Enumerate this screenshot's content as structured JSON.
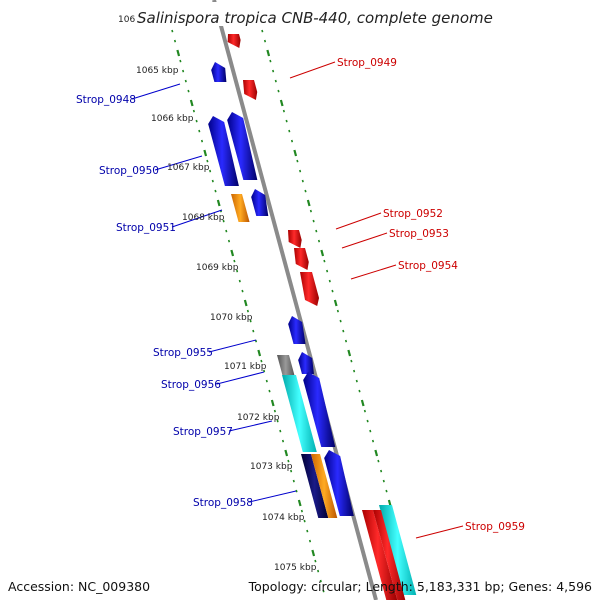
{
  "title": "Salinispora tropica CNB-440, complete genome",
  "accession": "Accession: NC_009380",
  "summary": "Topology: circular; Length: 5,183,331 bp; Genes: 4,596",
  "ticks": [
    {
      "label": "1065 kbp"
    },
    {
      "label": "1066 kbp"
    },
    {
      "label": "1067 kbp"
    },
    {
      "label": "1068 kbp"
    },
    {
      "label": "1069 kbp"
    },
    {
      "label": "1070 kbp"
    },
    {
      "label": "1071 kbp"
    },
    {
      "label": "1072 kbp"
    },
    {
      "label": "1073 kbp"
    },
    {
      "label": "1074 kbp"
    },
    {
      "label": "1075 kbp"
    }
  ],
  "top_tick_fragment": "106",
  "genes_left": [
    {
      "name": "Strop_0948",
      "color": "#0000cc"
    },
    {
      "name": "Strop_0950",
      "color": "#0000cc"
    },
    {
      "name": "Strop_0951",
      "color": "#0000cc"
    },
    {
      "name": "Strop_0955",
      "color": "#0000cc"
    },
    {
      "name": "Strop_0956",
      "color": "#0000cc"
    },
    {
      "name": "Strop_0957",
      "color": "#0000cc"
    },
    {
      "name": "Strop_0958",
      "color": "#0000cc"
    }
  ],
  "genes_right": [
    {
      "name": "Strop_0949",
      "color": "#cc0000"
    },
    {
      "name": "Strop_0952",
      "color": "#cc0000"
    },
    {
      "name": "Strop_0953",
      "color": "#cc0000"
    },
    {
      "name": "Strop_0954",
      "color": "#cc0000"
    },
    {
      "name": "Strop_0959",
      "color": "#cc0000"
    }
  ],
  "colors": {
    "forward_strand": "#1010e0",
    "reverse_strand": "#ee1010",
    "cds_orange": "#ff9900",
    "cds_cyan": "#00e5e5",
    "cds_gray": "#777777",
    "cds_navy": "#000066",
    "axis_ticks": "#228822",
    "backbone": "#888888"
  }
}
